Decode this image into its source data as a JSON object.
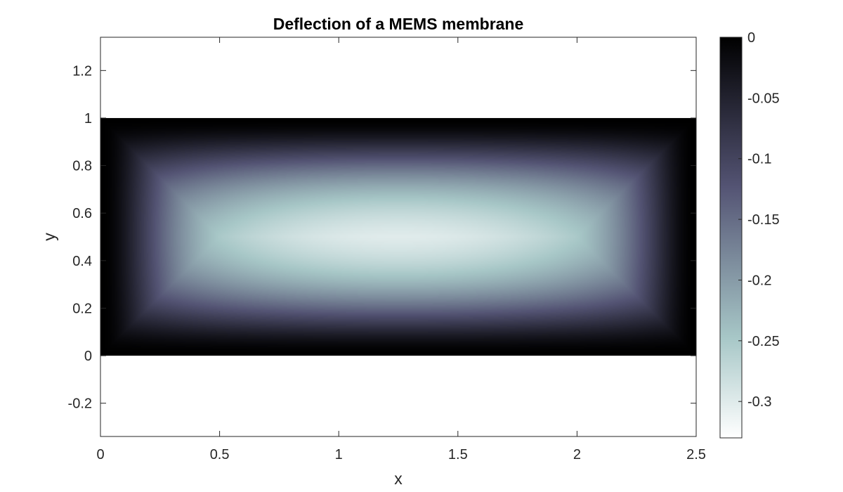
{
  "chart_data": {
    "type": "heatmap",
    "title": "Deflection of a MEMS membrane",
    "xlabel": "x",
    "ylabel": "y",
    "xlim": [
      0,
      2.5
    ],
    "ylim": [
      -0.34,
      1.34
    ],
    "x_ticks": [
      "0",
      "0.5",
      "1",
      "1.5",
      "2",
      "2.5"
    ],
    "y_ticks": [
      "-0.2",
      "0",
      "0.2",
      "0.4",
      "0.6",
      "0.8",
      "1",
      "1.2"
    ],
    "x_tick_values": [
      0,
      0.5,
      1,
      1.5,
      2,
      2.5
    ],
    "y_tick_values": [
      -0.2,
      0,
      0.2,
      0.4,
      0.6,
      0.8,
      1,
      1.2
    ],
    "domain": {
      "x": [
        0,
        2.5
      ],
      "y": [
        0,
        1
      ]
    },
    "value_range": [
      -0.33,
      0
    ],
    "min_value_location": {
      "x": 1.25,
      "y": 0.5
    },
    "colormap": "bone",
    "colorbar": {
      "range": [
        -0.33,
        0
      ],
      "ticks": [
        "0",
        "-0.05",
        "-0.1",
        "-0.15",
        "-0.2",
        "-0.25",
        "-0.3"
      ],
      "tick_values": [
        0,
        -0.05,
        -0.1,
        -0.15,
        -0.2,
        -0.25,
        -0.3
      ],
      "position": "right"
    },
    "grid": false
  }
}
